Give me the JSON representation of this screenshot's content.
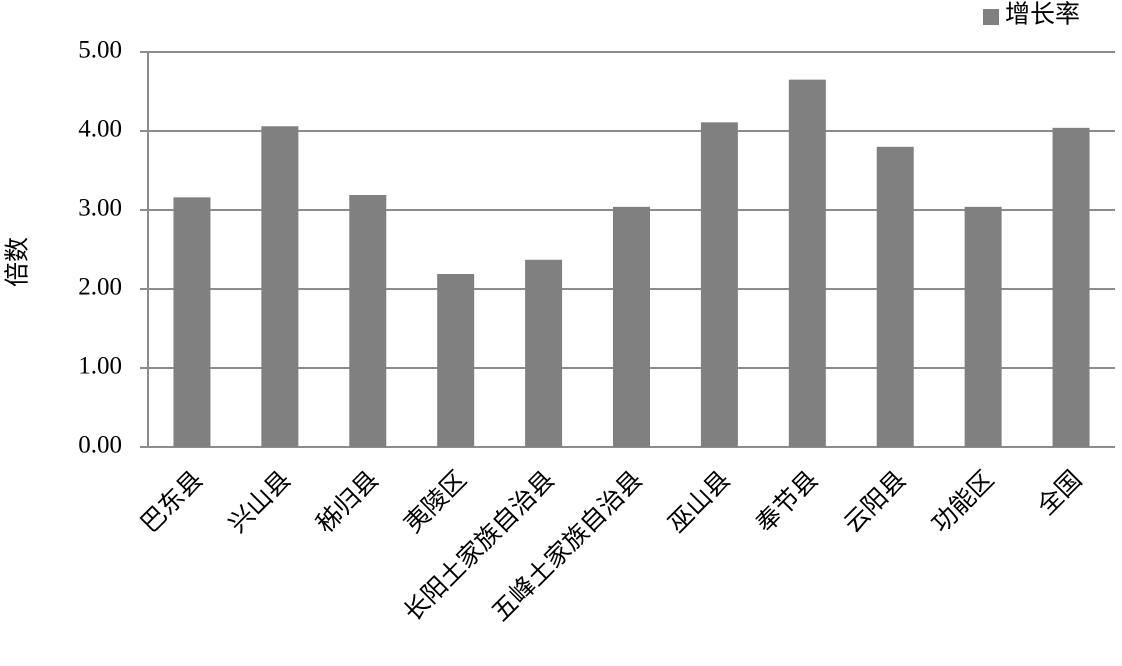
{
  "chart_data": {
    "type": "bar",
    "ylabel": "倍数",
    "categories": [
      "巴东县",
      "兴山县",
      "秭归县",
      "夷陵区",
      "长阳土家族自治县",
      "五峰土家族自治县",
      "巫山县",
      "奉节县",
      "云阳县",
      "功能区",
      "全国"
    ],
    "series": [
      {
        "name": "增长率",
        "color": "#808080",
        "values": [
          3.16,
          4.06,
          3.19,
          2.19,
          2.37,
          3.04,
          4.11,
          4.65,
          3.8,
          3.04,
          4.04
        ]
      }
    ],
    "ylim": [
      0,
      5
    ],
    "yticks": [
      {
        "value": 0,
        "label": "0.00"
      },
      {
        "value": 1,
        "label": "1.00"
      },
      {
        "value": 2,
        "label": "2.00"
      },
      {
        "value": 3,
        "label": "3.00"
      },
      {
        "value": 4,
        "label": "4.00"
      },
      {
        "value": 5,
        "label": "5.00"
      }
    ],
    "grid": true,
    "legend": "top-right"
  }
}
